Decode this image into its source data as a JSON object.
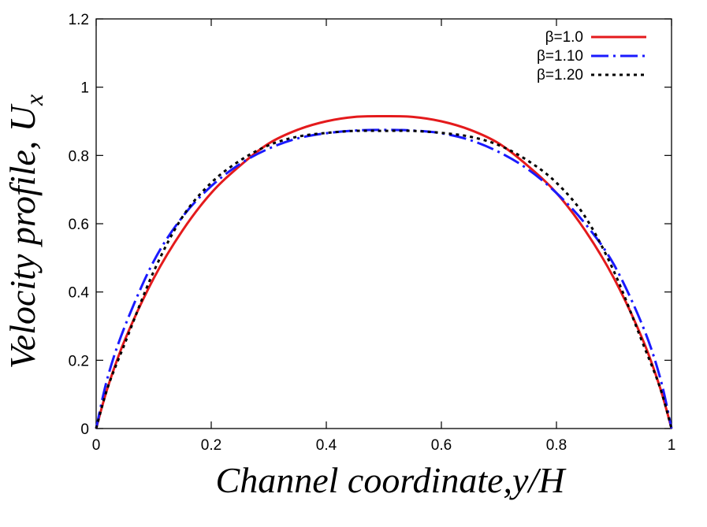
{
  "chart_data": {
    "type": "line",
    "title": "",
    "xlabel": "Channel coordinate,y/H",
    "ylabel_main": "Velocity profile, U",
    "ylabel_sub": "x",
    "xlim": [
      0,
      1
    ],
    "ylim": [
      0,
      1.2
    ],
    "xticks": [
      "0",
      "0.2",
      "0.4",
      "0.6",
      "0.8",
      "1"
    ],
    "yticks": [
      "0",
      "0.2",
      "0.4",
      "0.6",
      "0.8",
      "1",
      "1.2"
    ],
    "grid": false,
    "legend_position": "top-right",
    "series": [
      {
        "name": "β=1.0",
        "color": "#e41a1c",
        "style": "solid",
        "x": [
          0,
          0.02,
          0.05,
          0.1,
          0.15,
          0.2,
          0.25,
          0.3,
          0.35,
          0.4,
          0.45,
          0.5,
          0.55,
          0.6,
          0.65,
          0.7,
          0.75,
          0.8,
          0.85,
          0.9,
          0.95,
          0.98,
          1.0
        ],
        "y": [
          0,
          0.12,
          0.26,
          0.44,
          0.58,
          0.69,
          0.77,
          0.835,
          0.875,
          0.9,
          0.913,
          0.915,
          0.913,
          0.9,
          0.875,
          0.835,
          0.77,
          0.69,
          0.58,
          0.44,
          0.26,
          0.12,
          0
        ]
      },
      {
        "name": "β=1.10",
        "color": "#1a1aff",
        "style": "dash-dot",
        "x": [
          0,
          0.02,
          0.05,
          0.1,
          0.15,
          0.2,
          0.25,
          0.3,
          0.35,
          0.4,
          0.45,
          0.5,
          0.55,
          0.6,
          0.65,
          0.7,
          0.75,
          0.8,
          0.85,
          0.9,
          0.95,
          0.98,
          1.0
        ],
        "y": [
          0,
          0.15,
          0.3,
          0.49,
          0.62,
          0.71,
          0.775,
          0.82,
          0.85,
          0.865,
          0.873,
          0.875,
          0.873,
          0.865,
          0.845,
          0.81,
          0.76,
          0.69,
          0.6,
          0.48,
          0.3,
          0.15,
          0
        ]
      },
      {
        "name": "β=1.20",
        "color": "#000000",
        "style": "dotted",
        "x": [
          0,
          0.02,
          0.05,
          0.1,
          0.15,
          0.2,
          0.25,
          0.3,
          0.35,
          0.4,
          0.45,
          0.5,
          0.55,
          0.6,
          0.65,
          0.7,
          0.75,
          0.8,
          0.85,
          0.9,
          0.95,
          0.98,
          1.0
        ],
        "y": [
          0,
          0.12,
          0.25,
          0.46,
          0.62,
          0.72,
          0.785,
          0.83,
          0.855,
          0.866,
          0.872,
          0.872,
          0.872,
          0.866,
          0.855,
          0.83,
          0.785,
          0.72,
          0.62,
          0.46,
          0.25,
          0.12,
          0
        ]
      }
    ]
  }
}
